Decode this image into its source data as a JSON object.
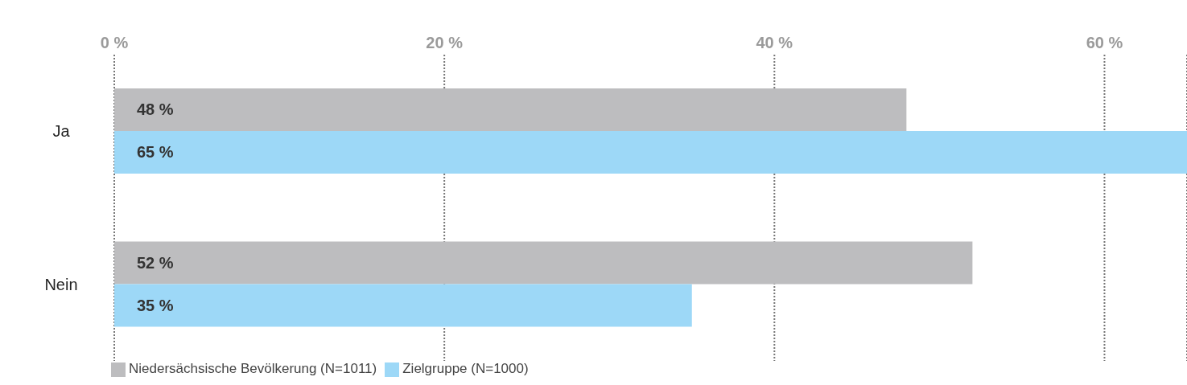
{
  "chart_data": {
    "type": "bar",
    "orientation": "horizontal",
    "categories": [
      "Ja",
      "Nein"
    ],
    "series": [
      {
        "name": "Niedersächsische Bevölkerung (N=1011)",
        "color": "#bdbdbf",
        "values": [
          48,
          52
        ],
        "value_labels": [
          "48 %",
          "52 %"
        ]
      },
      {
        "name": "Zielgruppe (N=1000)",
        "color": "#9dd8f7",
        "values": [
          65,
          35
        ],
        "value_labels": [
          "65 %",
          "35 %"
        ]
      }
    ],
    "xlim": [
      0,
      65
    ],
    "xticks": [
      {
        "value": 0,
        "label": "0 %"
      },
      {
        "value": 20,
        "label": "20 %"
      },
      {
        "value": 40,
        "label": "40 %"
      },
      {
        "value": 60,
        "label": "60 %"
      }
    ],
    "grid": "x",
    "legend": "bottom left"
  }
}
